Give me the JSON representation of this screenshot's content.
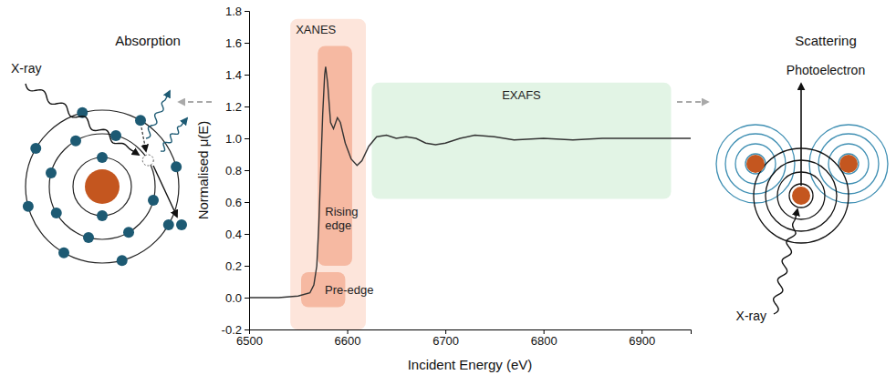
{
  "chart_data": {
    "type": "line",
    "x_label": "Incident Energy (eV)",
    "y_label": "Normalised μ(E)",
    "x": [
      6500,
      6530,
      6550,
      6562,
      6566,
      6569,
      6571,
      6573,
      6575,
      6577,
      6578,
      6580,
      6583,
      6586,
      6590,
      6593,
      6598,
      6604,
      6610,
      6615,
      6622,
      6630,
      6640,
      6650,
      6660,
      6670,
      6680,
      6690,
      6700,
      6715,
      6730,
      6750,
      6770,
      6800,
      6830,
      6860,
      6900,
      6950
    ],
    "values": [
      0,
      0,
      0.01,
      0.03,
      0.08,
      0.2,
      0.45,
      0.8,
      1.15,
      1.4,
      1.45,
      1.35,
      1.1,
      1.06,
      1.13,
      1.1,
      0.97,
      0.87,
      0.83,
      0.86,
      0.95,
      1.01,
      1.02,
      1.0,
      1.01,
      1.0,
      0.97,
      0.96,
      0.97,
      1.0,
      1.02,
      1.01,
      0.99,
      1.0,
      0.99,
      1.0,
      1.0,
      1.0
    ],
    "color": "#333333",
    "xlim": [
      6500,
      6950
    ],
    "ylim": [
      -0.2,
      1.8
    ],
    "xticks": [
      6500,
      6600,
      6700,
      6800,
      6900
    ],
    "yticks": [
      -0.2,
      {
        "value": 0,
        "label": "0.0"
      },
      0.2,
      0.4,
      0.6,
      0.8,
      {
        "value": 1,
        "label": "1.0"
      },
      1.2,
      1.4,
      1.6,
      1.8
    ],
    "annotations": [
      {
        "text": "XANES",
        "x": [
          6542,
          6619
        ],
        "y": [
          -0.2,
          1.75
        ],
        "color": "#fde5db"
      },
      {
        "text": "Rising edge",
        "x": [
          6570,
          6605
        ],
        "y": [
          0.2,
          1.58
        ],
        "color": "#f6b9a2"
      },
      {
        "text": "Pre-edge",
        "x": [
          6553,
          6598
        ],
        "y": [
          -0.06,
          0.16
        ],
        "color": "#f6b9a2"
      },
      {
        "text": "EXAFS",
        "x": [
          6625,
          6930
        ],
        "y": [
          0.62,
          1.35
        ],
        "color": "#e2f4e5"
      }
    ]
  },
  "diagrams": {
    "absorption": {
      "title": "Absorption",
      "x_ray_label": "X-ray"
    },
    "scattering": {
      "title": "Scattering",
      "photoelectron_label": "Photoelectron",
      "x_ray_label": "X-ray"
    }
  }
}
